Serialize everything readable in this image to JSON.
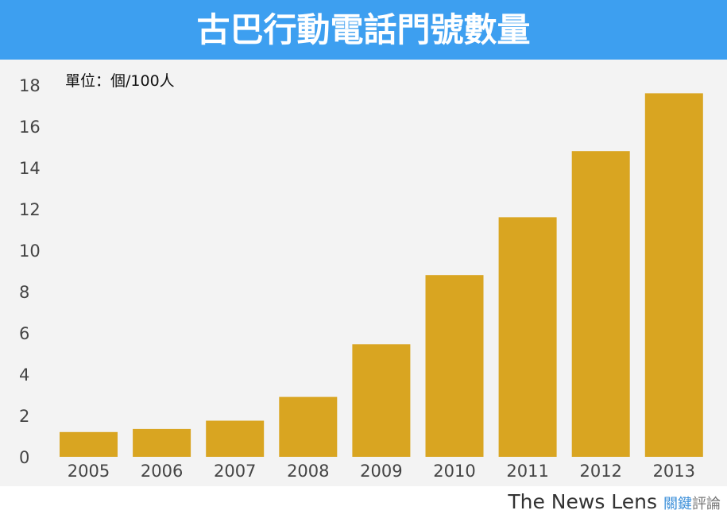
{
  "chart_data": {
    "type": "bar",
    "title": "古巴行動電話門號數量",
    "unit_label": "單位：個/100人",
    "categories": [
      "2005",
      "2006",
      "2007",
      "2008",
      "2009",
      "2010",
      "2011",
      "2012",
      "2013"
    ],
    "values": [
      1.2,
      1.35,
      1.75,
      2.9,
      5.45,
      8.8,
      11.6,
      14.8,
      17.6
    ],
    "ylim": [
      0,
      18
    ],
    "yticks": [
      0,
      2,
      4,
      6,
      8,
      10,
      12,
      14,
      16,
      18
    ],
    "xlabel": "",
    "ylabel": "",
    "bar_color": "#d9a521",
    "grid": false
  },
  "footer": {
    "brand": "The News Lens",
    "brand_cn_a": "關鍵",
    "brand_cn_b": "評論"
  }
}
